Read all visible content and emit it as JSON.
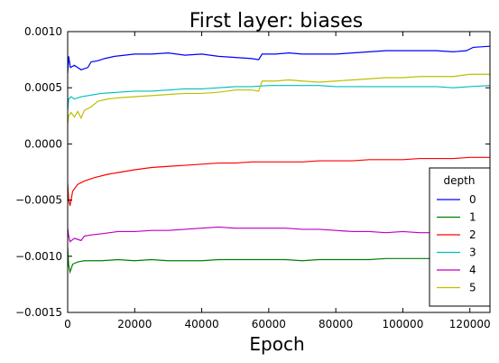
{
  "chart_data": {
    "type": "line",
    "title": "First layer: biases",
    "xlabel": "Epoch",
    "ylabel": "",
    "xlim": [
      0,
      126000
    ],
    "ylim": [
      -0.0015,
      0.001
    ],
    "xticks": [
      0,
      20000,
      40000,
      60000,
      80000,
      100000,
      120000
    ],
    "xtick_labels": [
      "0",
      "20000",
      "40000",
      "60000",
      "80000",
      "100000",
      "120000"
    ],
    "yticks": [
      -0.0015,
      -0.001,
      -0.0005,
      0.0,
      0.0005,
      0.001
    ],
    "ytick_labels": [
      "−0.0015",
      "−0.0010",
      "−0.0005",
      "0.0000",
      "0.0005",
      "0.0010"
    ],
    "grid": false,
    "legend": {
      "title": "depth",
      "placement": "lower-right"
    },
    "series": [
      {
        "name": "0",
        "color": "#0000ff",
        "points": [
          [
            0,
            0.00063
          ],
          [
            300,
            0.00078
          ],
          [
            800,
            0.00068
          ],
          [
            2000,
            0.0007
          ],
          [
            4000,
            0.00066
          ],
          [
            6000,
            0.00068
          ],
          [
            7000,
            0.00073
          ],
          [
            9000,
            0.00074
          ],
          [
            11000,
            0.00076
          ],
          [
            14000,
            0.00078
          ],
          [
            17000,
            0.00079
          ],
          [
            20000,
            0.0008
          ],
          [
            25000,
            0.0008
          ],
          [
            30000,
            0.00081
          ],
          [
            35000,
            0.00079
          ],
          [
            40000,
            0.0008
          ],
          [
            45000,
            0.00078
          ],
          [
            50000,
            0.00077
          ],
          [
            55000,
            0.00076
          ],
          [
            57000,
            0.00075
          ],
          [
            58000,
            0.0008
          ],
          [
            62000,
            0.0008
          ],
          [
            66000,
            0.00081
          ],
          [
            70000,
            0.0008
          ],
          [
            75000,
            0.0008
          ],
          [
            80000,
            0.0008
          ],
          [
            85000,
            0.00081
          ],
          [
            90000,
            0.00082
          ],
          [
            95000,
            0.00083
          ],
          [
            100000,
            0.00083
          ],
          [
            105000,
            0.00083
          ],
          [
            110000,
            0.00083
          ],
          [
            115000,
            0.00082
          ],
          [
            119000,
            0.00083
          ],
          [
            121000,
            0.00086
          ],
          [
            126000,
            0.00087
          ]
        ]
      },
      {
        "name": "1",
        "color": "#008000",
        "points": [
          [
            0,
            -0.00092
          ],
          [
            300,
            -0.00108
          ],
          [
            700,
            -0.00114
          ],
          [
            1500,
            -0.00107
          ],
          [
            3000,
            -0.00105
          ],
          [
            5000,
            -0.00104
          ],
          [
            10000,
            -0.00104
          ],
          [
            15000,
            -0.00103
          ],
          [
            20000,
            -0.00104
          ],
          [
            25000,
            -0.00103
          ],
          [
            30000,
            -0.00104
          ],
          [
            35000,
            -0.00104
          ],
          [
            40000,
            -0.00104
          ],
          [
            45000,
            -0.00103
          ],
          [
            50000,
            -0.00103
          ],
          [
            55000,
            -0.00103
          ],
          [
            60000,
            -0.00103
          ],
          [
            65000,
            -0.00103
          ],
          [
            70000,
            -0.00104
          ],
          [
            75000,
            -0.00103
          ],
          [
            80000,
            -0.00103
          ],
          [
            85000,
            -0.00103
          ],
          [
            90000,
            -0.00103
          ],
          [
            95000,
            -0.00102
          ],
          [
            100000,
            -0.00102
          ],
          [
            105000,
            -0.00102
          ],
          [
            110000,
            -0.00102
          ],
          [
            115000,
            -0.00102
          ],
          [
            120000,
            -0.00102
          ],
          [
            126000,
            -0.00101
          ]
        ]
      },
      {
        "name": "2",
        "color": "#ff0000",
        "points": [
          [
            0,
            -0.00035
          ],
          [
            300,
            -0.0005
          ],
          [
            700,
            -0.00055
          ],
          [
            1500,
            -0.00042
          ],
          [
            3000,
            -0.00036
          ],
          [
            5000,
            -0.00033
          ],
          [
            8000,
            -0.0003
          ],
          [
            12000,
            -0.00027
          ],
          [
            16000,
            -0.00025
          ],
          [
            20000,
            -0.00023
          ],
          [
            25000,
            -0.00021
          ],
          [
            30000,
            -0.0002
          ],
          [
            35000,
            -0.00019
          ],
          [
            40000,
            -0.00018
          ],
          [
            45000,
            -0.00017
          ],
          [
            50000,
            -0.00017
          ],
          [
            55000,
            -0.00016
          ],
          [
            60000,
            -0.00016
          ],
          [
            65000,
            -0.00016
          ],
          [
            70000,
            -0.00016
          ],
          [
            75000,
            -0.00015
          ],
          [
            80000,
            -0.00015
          ],
          [
            85000,
            -0.00015
          ],
          [
            90000,
            -0.00014
          ],
          [
            95000,
            -0.00014
          ],
          [
            100000,
            -0.00014
          ],
          [
            105000,
            -0.00013
          ],
          [
            110000,
            -0.00013
          ],
          [
            115000,
            -0.00013
          ],
          [
            120000,
            -0.00012
          ],
          [
            126000,
            -0.00012
          ]
        ]
      },
      {
        "name": "3",
        "color": "#00bfbf",
        "points": [
          [
            0,
            0.0003
          ],
          [
            300,
            0.0004
          ],
          [
            1000,
            0.00042
          ],
          [
            2000,
            0.0004
          ],
          [
            4000,
            0.00042
          ],
          [
            6000,
            0.00043
          ],
          [
            8000,
            0.00044
          ],
          [
            10000,
            0.00045
          ],
          [
            15000,
            0.00046
          ],
          [
            20000,
            0.00047
          ],
          [
            25000,
            0.00047
          ],
          [
            30000,
            0.00048
          ],
          [
            35000,
            0.00049
          ],
          [
            40000,
            0.00049
          ],
          [
            45000,
            0.0005
          ],
          [
            50000,
            0.00051
          ],
          [
            55000,
            0.00051
          ],
          [
            60000,
            0.00052
          ],
          [
            65000,
            0.00052
          ],
          [
            70000,
            0.00052
          ],
          [
            75000,
            0.00052
          ],
          [
            80000,
            0.00051
          ],
          [
            85000,
            0.00051
          ],
          [
            90000,
            0.00051
          ],
          [
            95000,
            0.00051
          ],
          [
            100000,
            0.00051
          ],
          [
            105000,
            0.00051
          ],
          [
            110000,
            0.00051
          ],
          [
            115000,
            0.0005
          ],
          [
            120000,
            0.00051
          ],
          [
            126000,
            0.00052
          ]
        ]
      },
      {
        "name": "4",
        "color": "#bf00bf",
        "points": [
          [
            0,
            -0.00075
          ],
          [
            300,
            -0.00082
          ],
          [
            700,
            -0.00087
          ],
          [
            2000,
            -0.00084
          ],
          [
            4000,
            -0.00086
          ],
          [
            5000,
            -0.00082
          ],
          [
            7000,
            -0.00081
          ],
          [
            10000,
            -0.0008
          ],
          [
            15000,
            -0.00078
          ],
          [
            20000,
            -0.00078
          ],
          [
            25000,
            -0.00077
          ],
          [
            30000,
            -0.00077
          ],
          [
            35000,
            -0.00076
          ],
          [
            40000,
            -0.00075
          ],
          [
            45000,
            -0.00074
          ],
          [
            50000,
            -0.00075
          ],
          [
            55000,
            -0.00075
          ],
          [
            60000,
            -0.00075
          ],
          [
            65000,
            -0.00075
          ],
          [
            70000,
            -0.00076
          ],
          [
            75000,
            -0.00076
          ],
          [
            80000,
            -0.00077
          ],
          [
            85000,
            -0.00078
          ],
          [
            90000,
            -0.00078
          ],
          [
            95000,
            -0.00079
          ],
          [
            100000,
            -0.00078
          ],
          [
            105000,
            -0.00079
          ],
          [
            110000,
            -0.00079
          ],
          [
            115000,
            -0.00079
          ],
          [
            120000,
            -0.00079
          ],
          [
            126000,
            -0.00079
          ]
        ]
      },
      {
        "name": "5",
        "color": "#bfbf00",
        "points": [
          [
            0,
            0.00018
          ],
          [
            300,
            0.00025
          ],
          [
            1000,
            0.00028
          ],
          [
            2000,
            0.00024
          ],
          [
            3000,
            0.00029
          ],
          [
            4000,
            0.00023
          ],
          [
            5000,
            0.0003
          ],
          [
            7000,
            0.00033
          ],
          [
            9000,
            0.00038
          ],
          [
            12000,
            0.0004
          ],
          [
            15000,
            0.00041
          ],
          [
            20000,
            0.00042
          ],
          [
            25000,
            0.00043
          ],
          [
            30000,
            0.00044
          ],
          [
            35000,
            0.00045
          ],
          [
            40000,
            0.00045
          ],
          [
            45000,
            0.00046
          ],
          [
            50000,
            0.00048
          ],
          [
            55000,
            0.00048
          ],
          [
            57000,
            0.00047
          ],
          [
            58000,
            0.00056
          ],
          [
            62000,
            0.00056
          ],
          [
            66000,
            0.00057
          ],
          [
            70000,
            0.00056
          ],
          [
            75000,
            0.00055
          ],
          [
            80000,
            0.00056
          ],
          [
            85000,
            0.00057
          ],
          [
            90000,
            0.00058
          ],
          [
            95000,
            0.00059
          ],
          [
            100000,
            0.00059
          ],
          [
            105000,
            0.0006
          ],
          [
            110000,
            0.0006
          ],
          [
            115000,
            0.0006
          ],
          [
            120000,
            0.00062
          ],
          [
            126000,
            0.00062
          ]
        ]
      }
    ]
  }
}
